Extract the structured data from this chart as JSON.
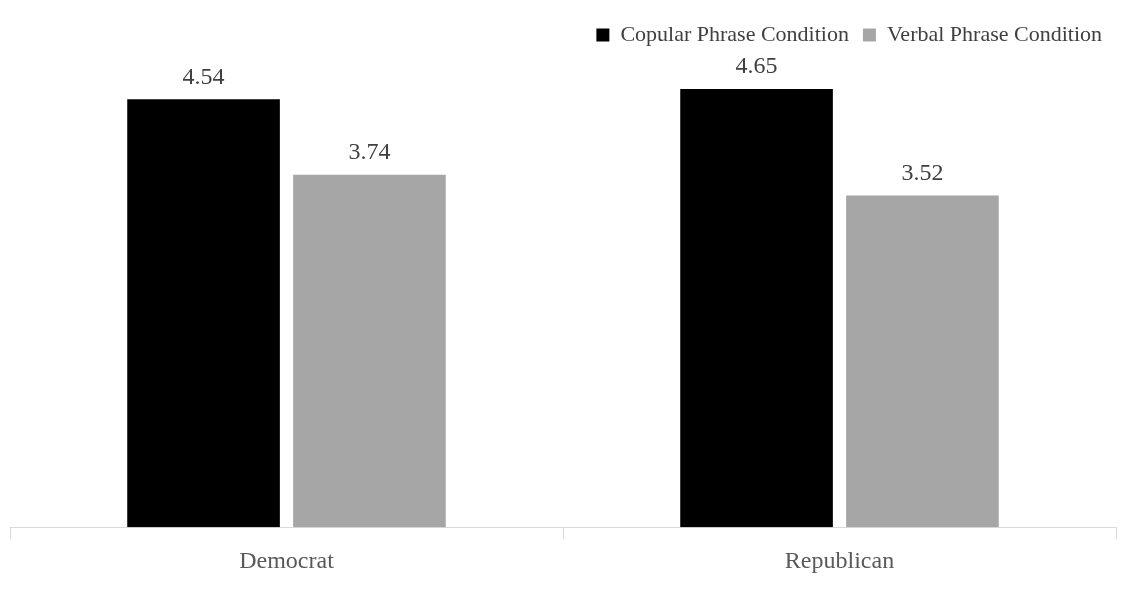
{
  "chart_data": {
    "type": "bar",
    "categories": [
      "Democrat",
      "Republican"
    ],
    "series": [
      {
        "name": "Copular Phrase Condition",
        "color": "#000000",
        "values": [
          4.54,
          4.65
        ]
      },
      {
        "name": "Verbal Phrase Condition",
        "color": "#a6a6a6",
        "values": [
          3.74,
          3.52
        ]
      }
    ],
    "data_labels": true,
    "grid": false,
    "legend": "top right"
  }
}
